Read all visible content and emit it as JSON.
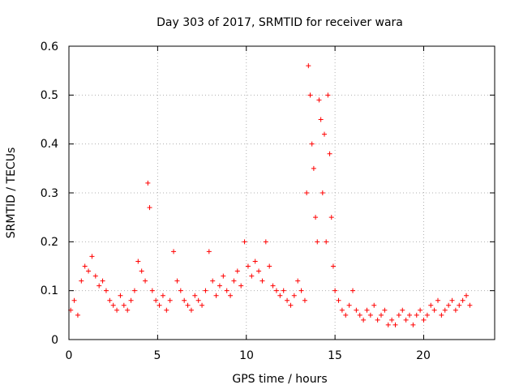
{
  "chart_data": {
    "type": "scatter",
    "title": "Day 303 of 2017, SRMTID for receiver wara",
    "xlabel": "GPS time / hours",
    "ylabel": "SRMTID / TECUs",
    "xlim": [
      0,
      24
    ],
    "ylim": [
      0,
      0.6
    ],
    "xticks": [
      0,
      5,
      10,
      15,
      20
    ],
    "yticks": [
      0,
      0.1,
      0.2,
      0.3,
      0.4,
      0.5,
      0.6
    ],
    "xtick_labels": [
      "0",
      "5",
      "10",
      "15",
      "20"
    ],
    "ytick_labels": [
      "0",
      "0.1",
      "0.2",
      "0.3",
      "0.4",
      "0.5",
      "0.6"
    ],
    "grid": true,
    "marker": "+",
    "color": "#ff0000",
    "series": [
      {
        "name": "SRMTID",
        "x": [
          0.1,
          0.3,
          0.5,
          0.7,
          0.9,
          1.1,
          1.3,
          1.5,
          1.7,
          1.9,
          2.1,
          2.3,
          2.5,
          2.7,
          2.9,
          3.1,
          3.3,
          3.5,
          3.7,
          3.9,
          4.1,
          4.3,
          4.45,
          4.55,
          4.7,
          4.9,
          5.1,
          5.3,
          5.5,
          5.7,
          5.9,
          6.1,
          6.3,
          6.5,
          6.7,
          6.9,
          7.1,
          7.3,
          7.5,
          7.7,
          7.9,
          8.1,
          8.3,
          8.5,
          8.7,
          8.9,
          9.1,
          9.3,
          9.5,
          9.7,
          9.9,
          10.1,
          10.3,
          10.5,
          10.7,
          10.9,
          11.1,
          11.3,
          11.5,
          11.7,
          11.9,
          12.1,
          12.3,
          12.5,
          12.7,
          12.9,
          13.1,
          13.3,
          13.4,
          13.5,
          13.6,
          13.7,
          13.8,
          13.9,
          14.0,
          14.1,
          14.2,
          14.3,
          14.4,
          14.5,
          14.6,
          14.7,
          14.8,
          14.9,
          15.0,
          15.2,
          15.4,
          15.6,
          15.8,
          16.0,
          16.2,
          16.4,
          16.6,
          16.8,
          17.0,
          17.2,
          17.4,
          17.6,
          17.8,
          18.0,
          18.2,
          18.4,
          18.6,
          18.8,
          19.0,
          19.2,
          19.4,
          19.6,
          19.8,
          20.0,
          20.2,
          20.4,
          20.6,
          20.8,
          21.0,
          21.2,
          21.4,
          21.6,
          21.8,
          22.0,
          22.2,
          22.4,
          22.6
        ],
        "y": [
          0.06,
          0.08,
          0.05,
          0.12,
          0.15,
          0.14,
          0.17,
          0.13,
          0.11,
          0.12,
          0.1,
          0.08,
          0.07,
          0.06,
          0.09,
          0.07,
          0.06,
          0.08,
          0.1,
          0.16,
          0.14,
          0.12,
          0.32,
          0.27,
          0.1,
          0.08,
          0.07,
          0.09,
          0.06,
          0.08,
          0.18,
          0.12,
          0.1,
          0.08,
          0.07,
          0.06,
          0.09,
          0.08,
          0.07,
          0.1,
          0.18,
          0.12,
          0.09,
          0.11,
          0.13,
          0.1,
          0.09,
          0.12,
          0.14,
          0.11,
          0.2,
          0.15,
          0.13,
          0.16,
          0.14,
          0.12,
          0.2,
          0.15,
          0.11,
          0.1,
          0.09,
          0.1,
          0.08,
          0.07,
          0.09,
          0.12,
          0.1,
          0.08,
          0.3,
          0.56,
          0.5,
          0.4,
          0.35,
          0.25,
          0.2,
          0.49,
          0.45,
          0.3,
          0.42,
          0.2,
          0.5,
          0.38,
          0.25,
          0.15,
          0.1,
          0.08,
          0.06,
          0.05,
          0.07,
          0.1,
          0.06,
          0.05,
          0.04,
          0.06,
          0.05,
          0.07,
          0.04,
          0.05,
          0.06,
          0.03,
          0.04,
          0.03,
          0.05,
          0.06,
          0.04,
          0.05,
          0.03,
          0.05,
          0.06,
          0.04,
          0.05,
          0.07,
          0.06,
          0.08,
          0.05,
          0.06,
          0.07,
          0.08,
          0.06,
          0.07,
          0.08,
          0.09,
          0.07
        ]
      }
    ]
  }
}
